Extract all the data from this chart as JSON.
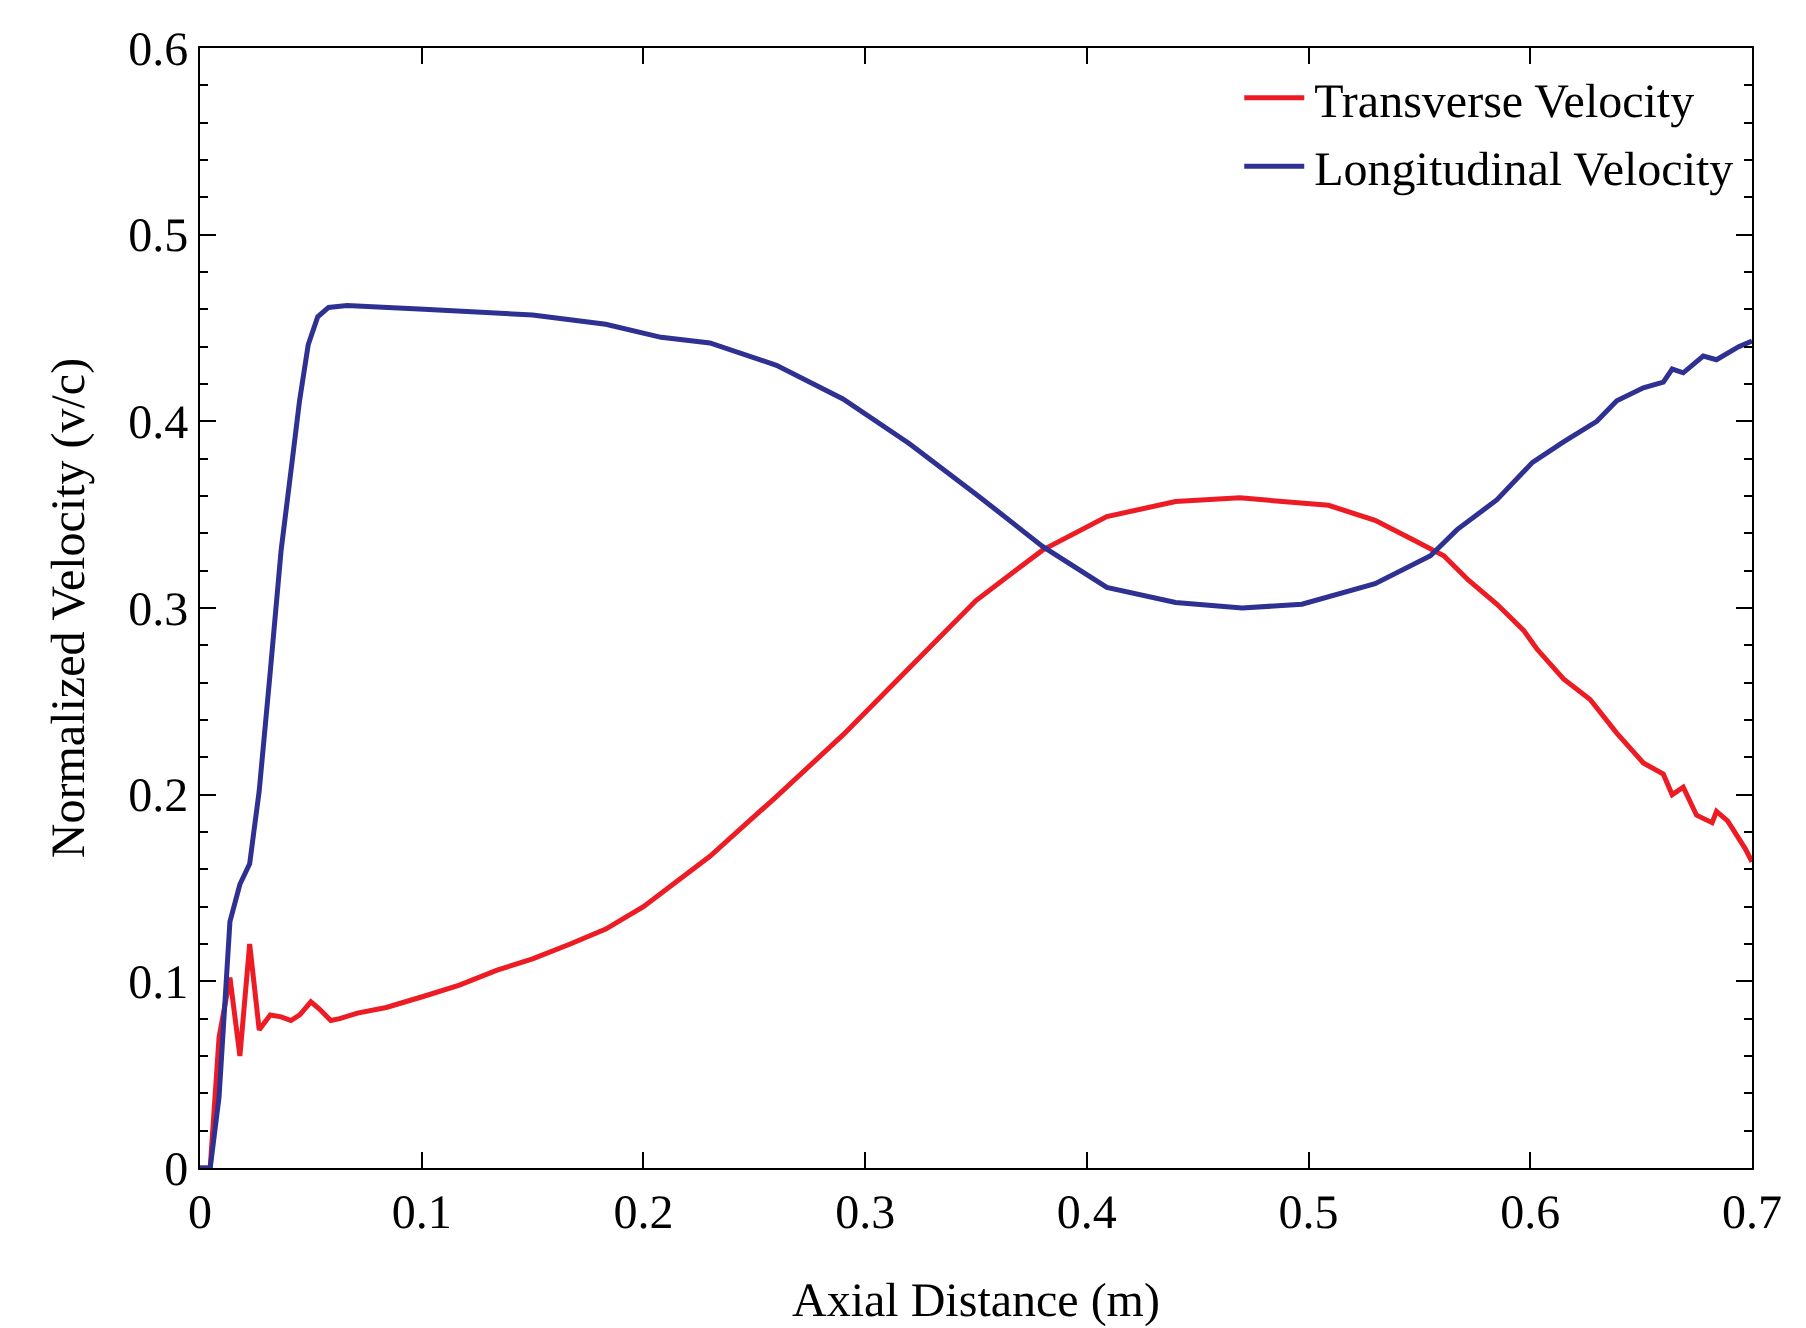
{
  "chart_data": {
    "type": "line",
    "xlabel": "Axial Distance (m)",
    "ylabel": "Normalized Velocity (v/c)",
    "xlim": [
      0,
      0.7
    ],
    "xticks": [
      0,
      0.1,
      0.2,
      0.3,
      0.4,
      0.5,
      0.6,
      0.7
    ],
    "ylim": [
      0,
      0.6
    ],
    "yticks": [
      0,
      0.1,
      0.2,
      0.3,
      0.4,
      0.5,
      0.6
    ],
    "grid": false,
    "legend": "top right",
    "marker": "none",
    "line_style": "solid",
    "series": [
      {
        "name": "Transverse Velocity",
        "color": "#ed1c24",
        "x": [
          0,
          0.0046,
          0.0086,
          0.0135,
          0.018,
          0.0224,
          0.0267,
          0.0317,
          0.0366,
          0.041,
          0.045,
          0.05,
          0.054,
          0.059,
          0.063,
          0.071,
          0.084,
          0.101,
          0.117,
          0.134,
          0.15,
          0.167,
          0.183,
          0.2,
          0.23,
          0.26,
          0.29,
          0.32,
          0.35,
          0.38,
          0.409,
          0.44,
          0.469,
          0.509,
          0.53,
          0.548,
          0.561,
          0.572,
          0.585,
          0.597,
          0.603,
          0.615,
          0.627,
          0.639,
          0.651,
          0.66,
          0.664,
          0.669,
          0.675,
          0.682,
          0.684,
          0.689,
          0.697,
          0.7
        ],
        "values": [
          0,
          0,
          0.07,
          0.102,
          0.06,
          0.12,
          0.074,
          0.082,
          0.081,
          0.079,
          0.082,
          0.089,
          0.085,
          0.079,
          0.08,
          0.083,
          0.086,
          0.092,
          0.098,
          0.106,
          0.112,
          0.12,
          0.128,
          0.14,
          0.167,
          0.199,
          0.232,
          0.268,
          0.304,
          0.331,
          0.349,
          0.357,
          0.359,
          0.355,
          0.347,
          0.336,
          0.328,
          0.315,
          0.302,
          0.288,
          0.278,
          0.262,
          0.251,
          0.233,
          0.217,
          0.211,
          0.2,
          0.204,
          0.189,
          0.185,
          0.191,
          0.186,
          0.171,
          0.164
        ]
      },
      {
        "name": "Longitudinal Velocity",
        "color": "#2e3192",
        "x": [
          0,
          0.0046,
          0.0086,
          0.0135,
          0.018,
          0.0224,
          0.0267,
          0.0317,
          0.0366,
          0.0416,
          0.0449,
          0.0488,
          0.0531,
          0.058,
          0.0663,
          0.101,
          0.15,
          0.183,
          0.208,
          0.23,
          0.26,
          0.29,
          0.32,
          0.35,
          0.38,
          0.409,
          0.44,
          0.47,
          0.497,
          0.53,
          0.555,
          0.567,
          0.585,
          0.601,
          0.615,
          0.63,
          0.639,
          0.651,
          0.66,
          0.664,
          0.669,
          0.678,
          0.684,
          0.694,
          0.7
        ],
        "values": [
          0,
          0,
          0.038,
          0.132,
          0.152,
          0.163,
          0.202,
          0.266,
          0.331,
          0.379,
          0.411,
          0.441,
          0.456,
          0.461,
          0.462,
          0.46,
          0.457,
          0.452,
          0.445,
          0.442,
          0.43,
          0.412,
          0.388,
          0.361,
          0.333,
          0.311,
          0.303,
          0.3,
          0.302,
          0.313,
          0.328,
          0.342,
          0.358,
          0.378,
          0.389,
          0.4,
          0.411,
          0.418,
          0.421,
          0.428,
          0.426,
          0.435,
          0.433,
          0.44,
          0.443
        ]
      }
    ]
  }
}
